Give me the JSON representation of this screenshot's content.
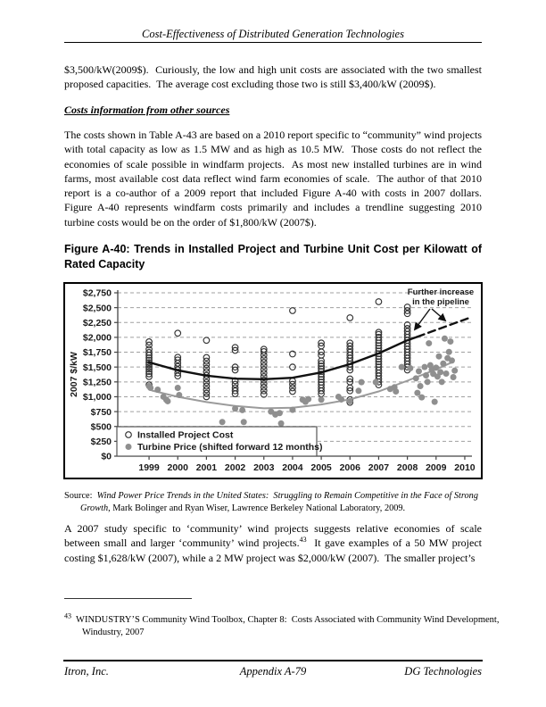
{
  "header": {
    "title": "Cost-Effectiveness of Distributed Generation Technologies"
  },
  "content": {
    "para1": "$3,500/kW(2009$).  Curiously, the low and high unit costs are associated with the two smallest proposed capacities.  The average cost excluding those two is still $3,400/kW (2009$).",
    "section_heading": "Costs information from other sources",
    "para2": "The costs shown in Table A-43 are based on a 2010 report specific to “community” wind projects with total capacity as low as 1.5 MW and as high as 10.5 MW.  Those costs do not reflect the economies of scale possible in windfarm projects.  As most new installed turbines are in wind farms, most available cost data reflect wind farm economies of scale.  The author of that 2010 report is a co-author of a 2009 report that included Figure A-40 with costs in 2007 dollars.  Figure A-40 represents windfarm costs primarily and includes a trendline suggesting 2010 turbine costs would be on the order of $1,800/kW (2007$).",
    "figure_caption": "Figure A-40:  Trends in Installed Project and Turbine Unit Cost per Kilowatt of Rated Capacity",
    "source": {
      "label": "Source:  ",
      "title_italic": "Wind Power Price Trends in the United States:  Struggling to Remain Competitive in the Face of Strong Growth",
      "rest": ", Mark Bolinger and Ryan Wiser, Lawrence Berkeley National Laboratory, 2009."
    },
    "para3": {
      "part1": "A 2007 study specific to ‘community’ wind projects suggests relative economies of scale between small and larger ‘community’ wind projects.",
      "footnote_ref": "43",
      "part2": "  It gave examples of a 50 MW project costing $1,628/kW (2007), while a 2 MW project was $2,000/kW (2007).  The smaller project’s"
    },
    "footnote": {
      "ref": "43",
      "text": "  WINDUSTRY’S Community Wind Toolbox, Chapter 8:  Costs Associated with Community Wind Development, Windustry, 2007"
    }
  },
  "footer": {
    "left": "Itron, Inc.",
    "center": "Appendix A-79",
    "right": "DG Technologies"
  },
  "chart_data": {
    "type": "scatter",
    "ylabel": "2007 $/kW",
    "xlabel": "",
    "xlim": [
      1997.91,
      2010.25
    ],
    "ylim": [
      0,
      2750
    ],
    "grid": "horizontal-dashed",
    "legend_position": "bottom-left-inside",
    "xticks": [
      1999,
      2000,
      2001,
      2002,
      2003,
      2004,
      2005,
      2006,
      2007,
      2008,
      2009,
      2010
    ],
    "yticks": {
      "values": [
        0,
        250,
        500,
        750,
        1000,
        1250,
        1500,
        1750,
        2000,
        2250,
        2500,
        2750
      ],
      "labels": [
        "$0",
        "$250",
        "$500",
        "$750",
        "$1,000",
        "$1,250",
        "$1,500",
        "$1,750",
        "$2,000",
        "$2,250",
        "$2,500",
        "$2,750"
      ]
    },
    "legend": [
      {
        "label": "Installed Project Cost",
        "marker": "open-circle"
      },
      {
        "label": "Turbine Price (shifted forward 12 months)",
        "marker": "filled-circle"
      }
    ],
    "annotation": {
      "lines": [
        "Further increase",
        "in the pipeline"
      ]
    },
    "colors": {
      "open_marker": "#333333",
      "filled_marker": "#8f8f8f",
      "trend_installed": "#111111",
      "trend_turbine": "#9b9b9b",
      "grid": "#a0a0a0",
      "axis": "#444444"
    },
    "series": [
      {
        "name": "Installed Project Cost",
        "marker": "open-circle",
        "stacks": {
          "1999": [
            1200,
            1340,
            1385,
            1425,
            1465,
            1500,
            1540,
            1575,
            1615,
            1655,
            1700,
            1745,
            1800,
            1870,
            1925
          ],
          "2000": [
            1350,
            1400,
            1455,
            1510,
            1565,
            1620,
            1665,
            2070
          ],
          "2001": [
            1000,
            1060,
            1120,
            1180,
            1240,
            1300,
            1360,
            1420,
            1480,
            1540,
            1600,
            1660,
            1950
          ],
          "2002": [
            1050,
            1100,
            1150,
            1210,
            1270,
            1450,
            1500,
            1780,
            1830
          ],
          "2003": [
            1040,
            1100,
            1160,
            1220,
            1280,
            1340,
            1400,
            1460,
            1520,
            1580,
            1640,
            1700,
            1760,
            1800
          ],
          "2004": [
            1090,
            1150,
            1210,
            1265,
            1500,
            1720,
            2450
          ],
          "2005": [
            1050,
            1100,
            1150,
            1200,
            1245,
            1290,
            1335,
            1380,
            1425,
            1470,
            1515,
            1560,
            1605,
            1700,
            1755,
            1855,
            1905
          ],
          "2006": [
            905,
            950,
            1100,
            1150,
            1250,
            1300,
            1450,
            1500,
            1550,
            1600,
            1650,
            1700,
            1750,
            1800,
            1855,
            1905,
            2330
          ],
          "2007": [
            1200,
            1250,
            1300,
            1350,
            1400,
            1450,
            1500,
            1545,
            1590,
            1635,
            1680,
            1725,
            1770,
            1815,
            1860,
            1905,
            1950,
            2000,
            2050,
            2085,
            2600
          ],
          "2008": [
            1450,
            1500,
            1550,
            1600,
            1650,
            1700,
            1750,
            1800,
            1850,
            1900,
            1950,
            2000,
            2050,
            2100,
            2150,
            2210,
            2400,
            2450,
            2510
          ]
        }
      },
      {
        "name": "Turbine Price (shifted forward 12 months)",
        "marker": "filled-circle",
        "points": [
          [
            1999.0,
            1180
          ],
          [
            1999.05,
            1150
          ],
          [
            1999.3,
            1120
          ],
          [
            1999.5,
            1000
          ],
          [
            1999.6,
            950
          ],
          [
            1999.65,
            925
          ],
          [
            2000.0,
            1150
          ],
          [
            2000.05,
            1030
          ],
          [
            2001.55,
            575
          ],
          [
            2002.0,
            800
          ],
          [
            2002.25,
            775
          ],
          [
            2002.3,
            575
          ],
          [
            2003.25,
            750
          ],
          [
            2003.4,
            700
          ],
          [
            2003.55,
            725
          ],
          [
            2003.6,
            550
          ],
          [
            2004.0,
            780
          ],
          [
            2004.35,
            950
          ],
          [
            2004.45,
            915
          ],
          [
            2004.55,
            960
          ],
          [
            2005.0,
            950
          ],
          [
            2005.6,
            1000
          ],
          [
            2005.7,
            955
          ],
          [
            2006.0,
            925
          ],
          [
            2006.3,
            1100
          ],
          [
            2006.4,
            1245
          ],
          [
            2006.9,
            1245
          ],
          [
            2007.4,
            1130
          ],
          [
            2007.55,
            1160
          ],
          [
            2007.6,
            1090
          ],
          [
            2007.8,
            1500
          ],
          [
            2008.1,
            1480
          ],
          [
            2008.3,
            1310
          ],
          [
            2008.35,
            1065
          ],
          [
            2008.4,
            1430
          ],
          [
            2008.45,
            1180
          ],
          [
            2008.5,
            990
          ],
          [
            2008.6,
            1500
          ],
          [
            2008.65,
            1360
          ],
          [
            2008.7,
            1250
          ],
          [
            2008.75,
            1900
          ],
          [
            2008.8,
            1530
          ],
          [
            2008.85,
            1455
          ],
          [
            2008.9,
            1385
          ],
          [
            2008.95,
            915
          ],
          [
            2009.0,
            1490
          ],
          [
            2009.05,
            1340
          ],
          [
            2009.1,
            1680
          ],
          [
            2009.15,
            1415
          ],
          [
            2009.2,
            1250
          ],
          [
            2009.25,
            1560
          ],
          [
            2009.3,
            1980
          ],
          [
            2009.35,
            1390
          ],
          [
            2009.4,
            1650
          ],
          [
            2009.45,
            1755
          ],
          [
            2009.5,
            1930
          ],
          [
            2009.55,
            1610
          ],
          [
            2009.6,
            1330
          ],
          [
            2009.65,
            1440
          ]
        ]
      }
    ],
    "trendlines": [
      {
        "name": "installed-project-cost-trend",
        "style": "solid",
        "color": "#111111",
        "width": 2.4,
        "points": [
          [
            1999,
            1580
          ],
          [
            2000,
            1445
          ],
          [
            2001,
            1355
          ],
          [
            2002,
            1305
          ],
          [
            2003,
            1295
          ],
          [
            2004,
            1320
          ],
          [
            2005,
            1410
          ],
          [
            2006,
            1550
          ],
          [
            2007,
            1730
          ],
          [
            2008,
            1950
          ],
          [
            2008.35,
            2010
          ]
        ]
      },
      {
        "name": "installed-project-cost-projection",
        "style": "dashed",
        "color": "#111111",
        "width": 2.4,
        "points": [
          [
            2008.35,
            2010
          ],
          [
            2010.2,
            2335
          ]
        ]
      },
      {
        "name": "turbine-price-trend",
        "style": "solid",
        "color": "#9b9b9b",
        "width": 2,
        "points": [
          [
            1999.1,
            1105
          ],
          [
            2000,
            1000
          ],
          [
            2001,
            910
          ],
          [
            2002,
            845
          ],
          [
            2003,
            805
          ],
          [
            2004,
            815
          ],
          [
            2005,
            870
          ],
          [
            2006,
            955
          ],
          [
            2007,
            1090
          ],
          [
            2008,
            1270
          ],
          [
            2009,
            1460
          ],
          [
            2009.6,
            1590
          ]
        ]
      }
    ]
  }
}
